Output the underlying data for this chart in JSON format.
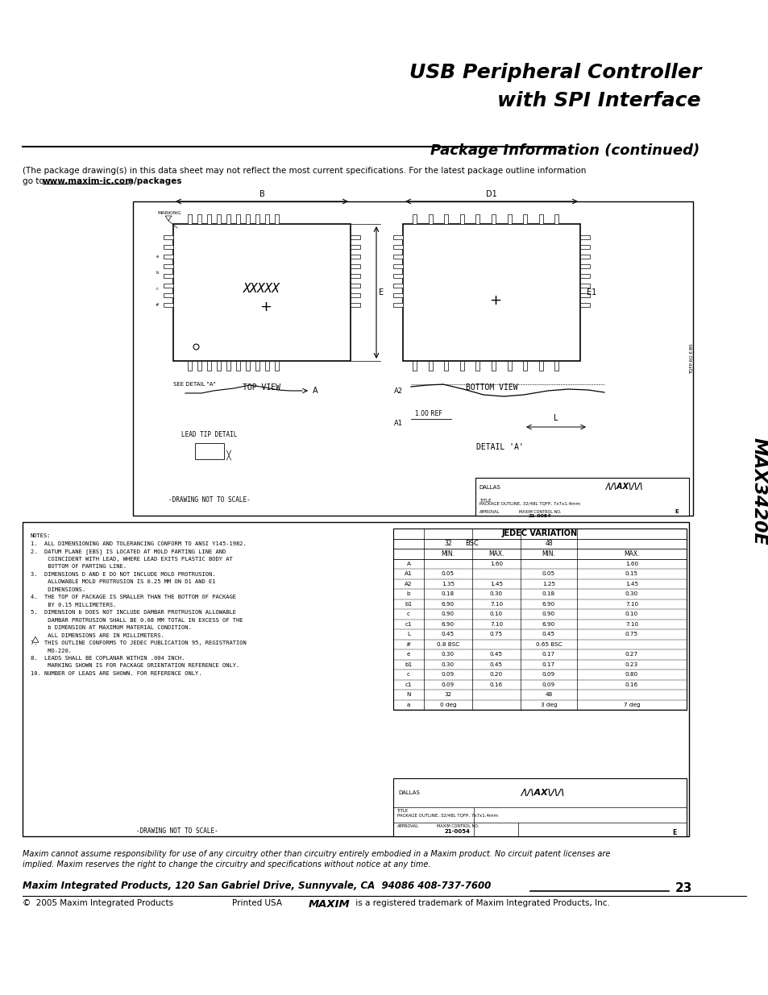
{
  "title_line1": "USB Peripheral Controller",
  "title_line2": "with SPI Interface",
  "section_title": "Package Information (continued)",
  "side_label": "MAX3420E",
  "package_note_line1": "(The package drawing(s) in this data sheet may not reflect the most current specifications. For the latest package outline information",
  "package_note_line2a": "go to ",
  "package_note_url": "www.maxim-ic.com/packages",
  "package_note_line2c": ".)",
  "footer_disclaimer_line1": "Maxim cannot assume responsibility for use of any circuitry other than circuitry entirely embodied in a Maxim product. No circuit patent licenses are",
  "footer_disclaimer_line2": "implied. Maxim reserves the right to change the circuitry and specifications without notice at any time.",
  "footer_address": "Maxim Integrated Products, 120 San Gabriel Drive, Sunnyvale, CA  94086 408-737-7600",
  "footer_page": "23",
  "footer_copyright": "©  2005 Maxim Integrated Products",
  "footer_printed": "Printed USA",
  "footer_trademark": " is a registered trademark of Maxim Integrated Products, Inc.",
  "bg_color": "#ffffff",
  "text_color": "#000000",
  "notes_text": "NOTES:\n1.  ALL DIMENSIONING AND TOLERANCING CONFORM TO ANSI Y145-1982.\n2.  DATUM PLANE [EBS] IS LOCATED AT MOLD PARTING LINE AND\n     COINCIDENT WITH LEAD, WHERE LEAD EXITS PLASTIC BODY AT\n     BOTTOM OF PARTING LINE.\n3.  DIMENSIONS D AND E DO NOT INCLUDE MOLD PROTRUSION.\n     ALLOWABLE MOLD PROTRUSION IS 0.25 MM ON D1 AND E1\n     DIMENSIONS.\n4.  THE TOP OF PACKAGE IS SMALLER THAN THE BOTTOM OF PACKAGE\n     BY 0.15 MILLIMETERS.\n5.  DIMENSION b DOES NOT INCLUDE DAMBAR PROTRUSION ALLOWABLE\n     DAMBAR PROTRUSION SHALL BE 0.08 MM TOTAL IN EXCESS OF THE\n     b DIMENSION AT MAXIMUM MATERIAL CONDITION.\n     ALL DIMENSIONS ARE IN MILLIMETERS.\n7.  THIS OUTLINE CONFORMS TO JEDEC PUBLICATION 95, REGISTRATION\n     MO-220.\n8.  LEADS SHALL BE COPLANAR WITHIN .004 INCH.\n     MARKING SHOWN IS FOR PACKAGE ORIENTATION REFERENCE ONLY.\n10. NUMBER OF LEADS ARE SHOWN. FOR REFERENCE ONLY.",
  "jedec_title": "JEDEC VARIATION",
  "jedec_rows": [
    [
      "A",
      "",
      "1.60",
      "",
      "1.60"
    ],
    [
      "A1",
      "0.05",
      "",
      "0.05",
      "0.15"
    ],
    [
      "A2",
      "1.35",
      "1.45",
      "1.25",
      "1.45"
    ],
    [
      "b",
      "0.18",
      "0.30",
      "0.18",
      "0.30"
    ],
    [
      "b1",
      "6.90",
      "7.10",
      "6.90",
      "7.10"
    ],
    [
      "c",
      "0.90",
      "0.10",
      "0.90",
      "0.10"
    ],
    [
      "c1",
      "6.90",
      "7.10",
      "6.90",
      "7.10"
    ],
    [
      "L",
      "0.45",
      "0.75",
      "0.45",
      "0.75"
    ],
    [
      "#",
      "0.8 BSC",
      "",
      "0.65 BSC",
      ""
    ],
    [
      "e",
      "0.30",
      "0.45",
      "0.17",
      "0.27"
    ],
    [
      "b1",
      "0.30",
      "0.45",
      "0.17",
      "0.23"
    ],
    [
      "c",
      "0.09",
      "0.20",
      "0.09",
      "0.80"
    ],
    [
      "c1",
      "0.09",
      "0.16",
      "0.09",
      "0.16"
    ],
    [
      "N",
      "32",
      "",
      "48",
      ""
    ],
    [
      "a",
      "0 deg",
      "",
      "3 deg",
      "7 deg"
    ]
  ],
  "pkg_outline_text": "PACKAGE OUTLINE, 32/48L TQFP, 7x7x1.4mm",
  "approval_text": "APPROVAL",
  "drawing_no": "21-0054",
  "rev": "E"
}
